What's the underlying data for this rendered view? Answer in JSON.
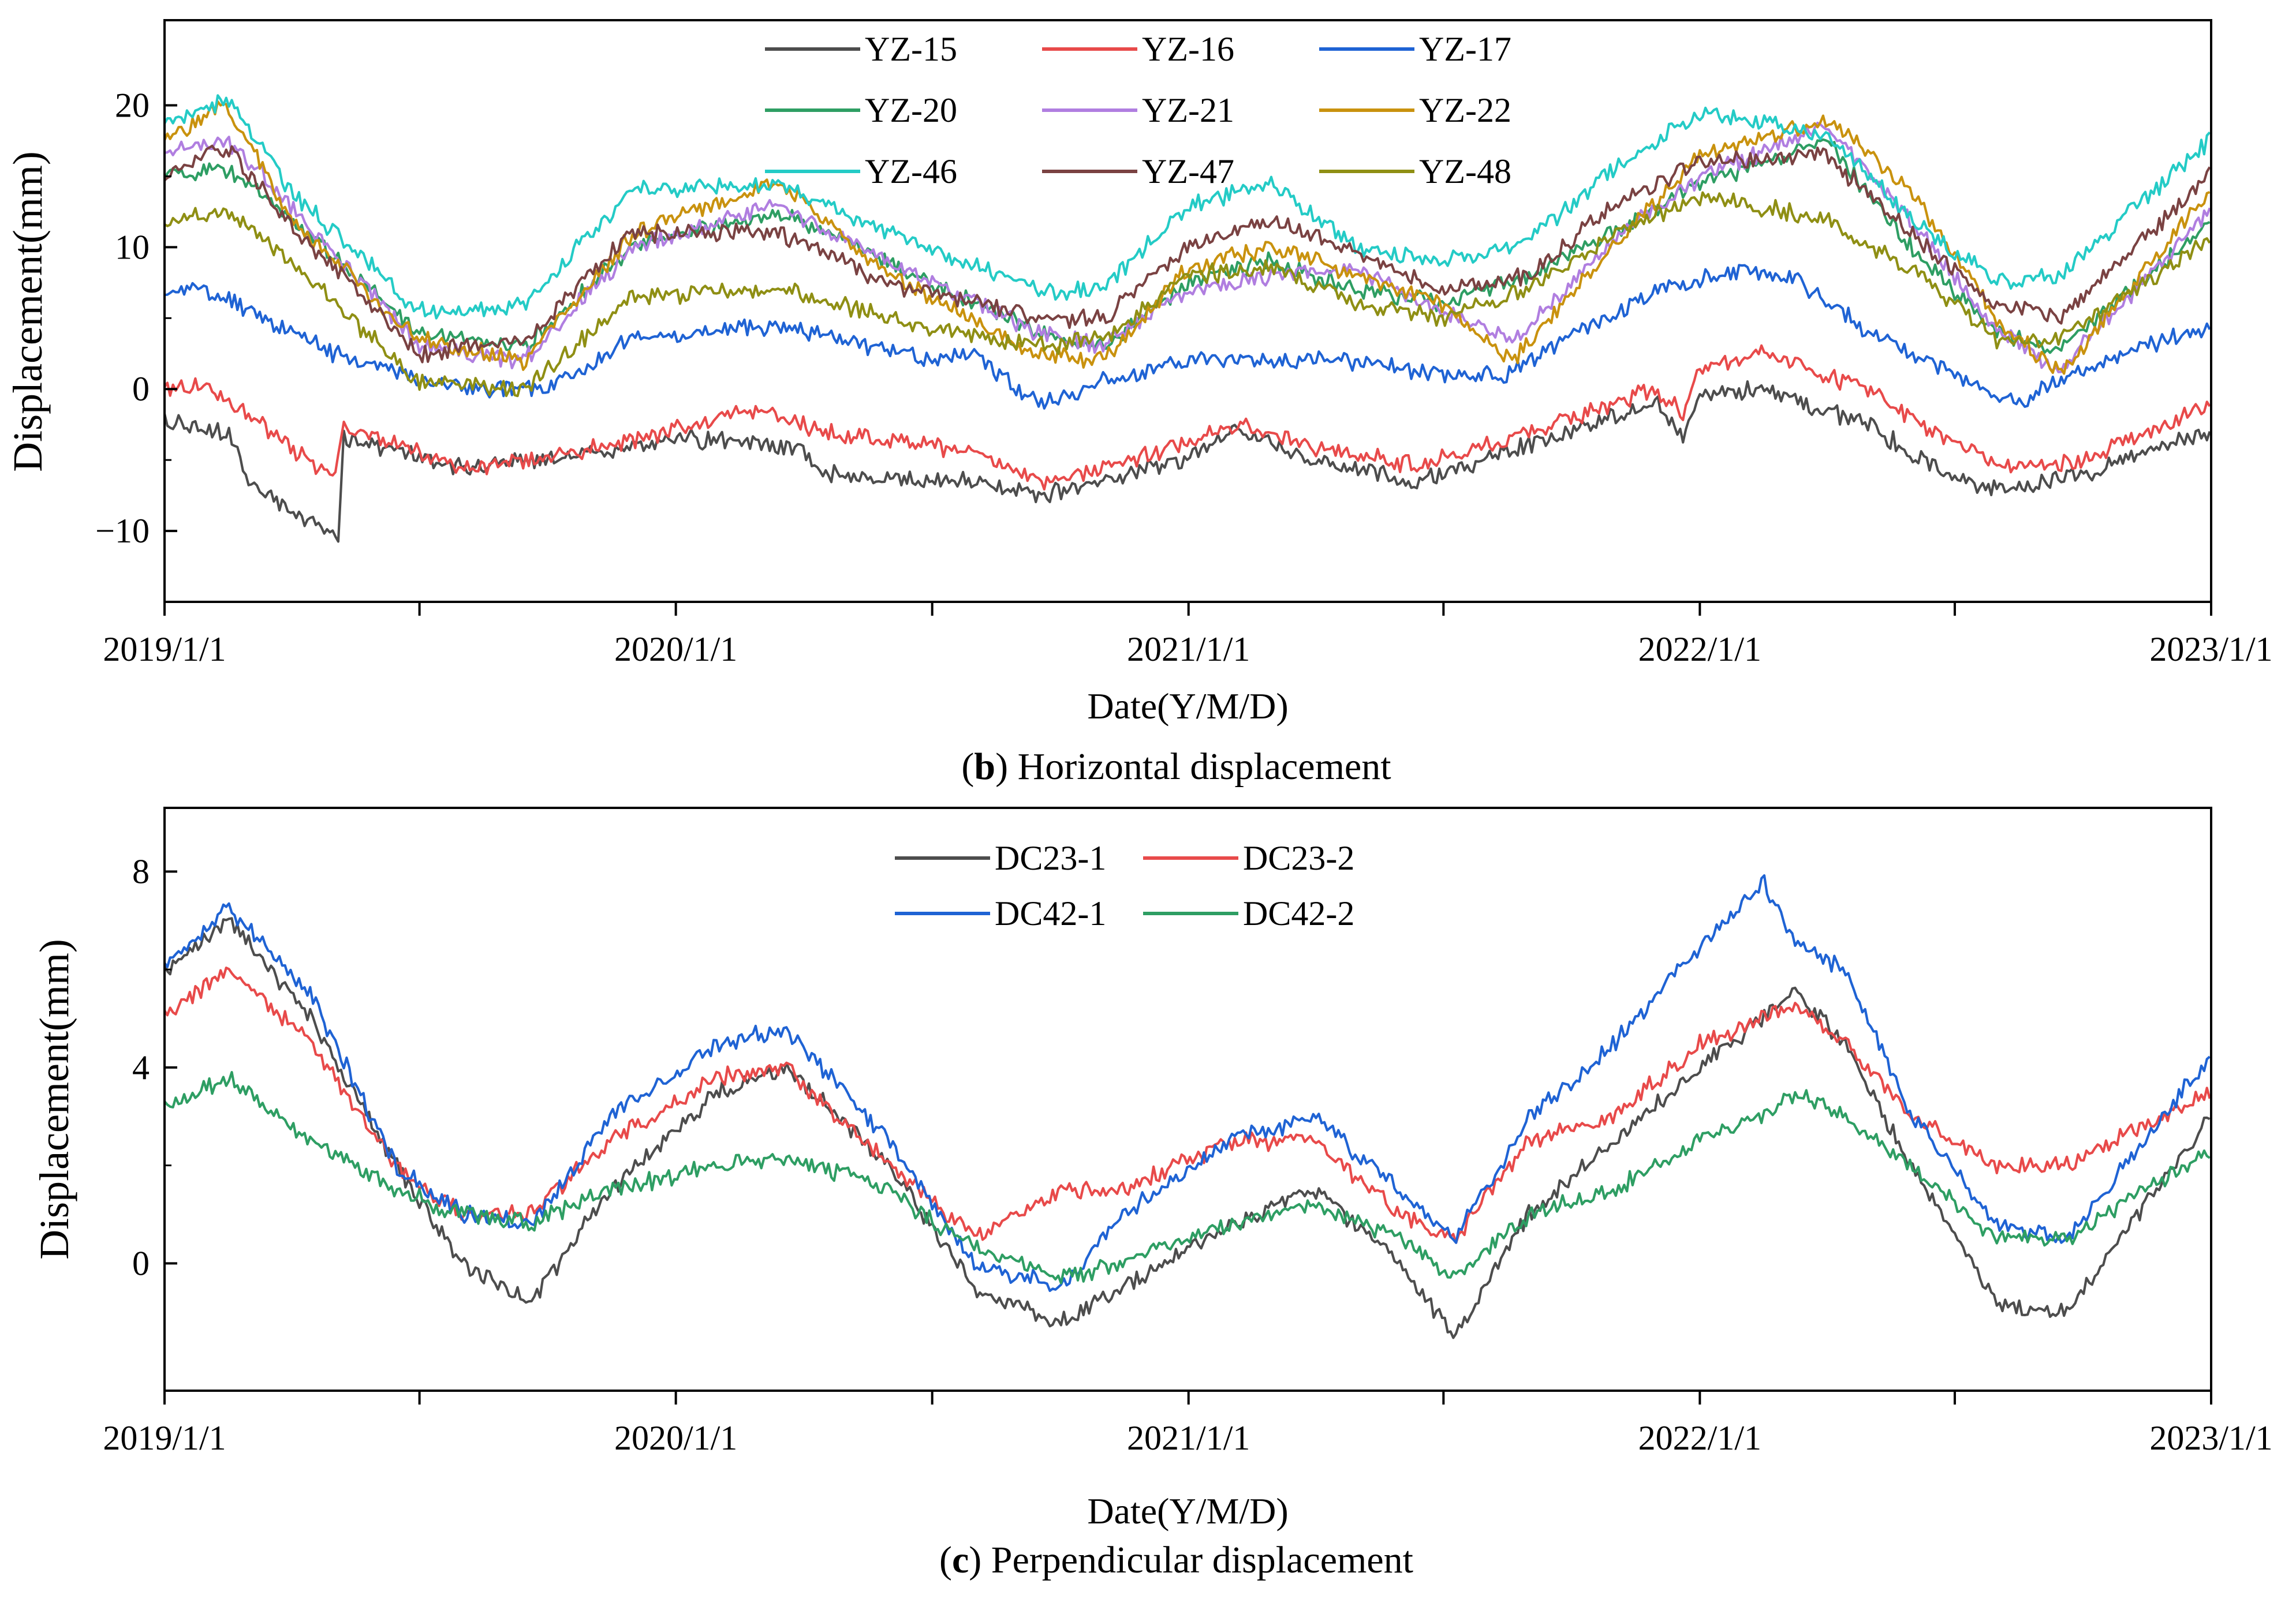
{
  "chart_data": [
    {
      "type": "line",
      "panel_label": "b",
      "caption": "Horizontal displacement",
      "xlabel": "Date(Y/M/D)",
      "ylabel": "Displacement(mm)",
      "x_tick_labels": [
        "2019/1/1",
        "2020/1/1",
        "2021/1/1",
        "2022/1/1",
        "2023/1/1"
      ],
      "x_range": [
        "2019-01-01",
        "2023-01-01"
      ],
      "ylim": [
        -15,
        26
      ],
      "y_ticks": [
        -10,
        0,
        10,
        20
      ],
      "y_tick_labels": [
        "−10",
        "0",
        "10",
        "20"
      ],
      "legend_position": "top-center",
      "legend_columns": 3,
      "series": [
        {
          "name": "YZ-15",
          "color": "#4d4d4d",
          "x": [
            "2019-01-01",
            "2019-02-15",
            "2019-03-01",
            "2019-05-05",
            "2019-05-09",
            "2019-08-01",
            "2019-10-01",
            "2020-01-01",
            "2020-03-01",
            "2020-04-01",
            "2020-04-15",
            "2020-07-01",
            "2020-08-01",
            "2020-09-15",
            "2020-11-01",
            "2021-01-01",
            "2021-02-01",
            "2021-04-01",
            "2021-06-15",
            "2021-09-01",
            "2021-12-01",
            "2021-12-20",
            "2022-01-01",
            "2022-02-15",
            "2022-05-01",
            "2022-07-01",
            "2022-08-15",
            "2022-10-01",
            "2022-12-31"
          ],
          "y": [
            -2.3,
            -3.0,
            -6.5,
            -10.5,
            -3.5,
            -5.5,
            -5.0,
            -3.5,
            -3.8,
            -4.5,
            -6.0,
            -6.5,
            -6.5,
            -7.5,
            -6.5,
            -5.0,
            -3.0,
            -5.0,
            -6.5,
            -4.0,
            -1.0,
            -3.5,
            -0.5,
            0.0,
            -2.5,
            -6.5,
            -7.0,
            -6.0,
            -3.0
          ]
        },
        {
          "name": "YZ-16",
          "color": "#e84a4a",
          "x": [
            "2019-01-01",
            "2019-02-01",
            "2019-05-01",
            "2019-05-09",
            "2019-08-01",
            "2019-10-01",
            "2020-01-01",
            "2020-03-01",
            "2020-04-15",
            "2020-08-01",
            "2020-09-15",
            "2020-11-01",
            "2021-01-01",
            "2021-02-01",
            "2021-04-01",
            "2021-06-15",
            "2021-09-01",
            "2021-12-01",
            "2021-12-20",
            "2022-01-01",
            "2022-02-15",
            "2022-05-01",
            "2022-07-01",
            "2022-08-15",
            "2022-10-01",
            "2022-12-31"
          ],
          "y": [
            0.0,
            0.3,
            -6.3,
            -2.5,
            -5.5,
            -5.0,
            -2.8,
            -1.5,
            -3.0,
            -4.5,
            -6.5,
            -5.5,
            -3.8,
            -2.5,
            -4.0,
            -5.5,
            -3.0,
            0.0,
            -1.5,
            1.5,
            2.5,
            0.0,
            -4.0,
            -5.5,
            -5.0,
            -1.0
          ]
        },
        {
          "name": "YZ-17",
          "color": "#1f63d4",
          "x": [
            "2019-01-01",
            "2019-02-01",
            "2019-05-01",
            "2019-08-01",
            "2019-10-01",
            "2019-12-01",
            "2020-03-01",
            "2020-05-01",
            "2020-07-01",
            "2020-08-01",
            "2020-09-15",
            "2020-11-01",
            "2021-01-01",
            "2021-03-01",
            "2021-05-01",
            "2021-07-01",
            "2021-08-15",
            "2021-10-15",
            "2021-12-01",
            "2022-02-01",
            "2022-03-15",
            "2022-05-01",
            "2022-07-01",
            "2022-08-15",
            "2022-10-01",
            "2022-12-31"
          ],
          "y": [
            6.8,
            7.0,
            2.5,
            0.0,
            0.0,
            3.5,
            4.5,
            3.5,
            2.0,
            2.5,
            -1.0,
            0.5,
            2.0,
            2.0,
            2.0,
            1.0,
            1.0,
            4.5,
            7.0,
            8.5,
            7.5,
            4.0,
            1.0,
            -1.0,
            1.5,
            4.5
          ]
        },
        {
          "name": "YZ-20",
          "color": "#2e9e63",
          "x": [
            "2019-01-01",
            "2019-02-15",
            "2019-04-01",
            "2019-07-01",
            "2019-09-15",
            "2019-12-01",
            "2020-03-15",
            "2020-06-01",
            "2020-09-15",
            "2020-11-01",
            "2021-01-01",
            "2021-03-01",
            "2021-05-01",
            "2021-07-01",
            "2021-09-01",
            "2021-11-01",
            "2022-01-01",
            "2022-04-01",
            "2022-06-01",
            "2022-08-01",
            "2022-09-15",
            "2022-12-31"
          ],
          "y": [
            15.0,
            15.5,
            12.0,
            4.0,
            3.0,
            10.0,
            12.5,
            9.0,
            4.0,
            3.0,
            7.5,
            9.0,
            7.0,
            6.0,
            8.0,
            11.0,
            14.5,
            17.5,
            10.0,
            4.0,
            3.0,
            11.5
          ]
        },
        {
          "name": "YZ-21",
          "color": "#b07ee0",
          "x": [
            "2019-01-01",
            "2019-02-15",
            "2019-04-01",
            "2019-07-01",
            "2019-09-15",
            "2019-12-01",
            "2020-03-15",
            "2020-06-01",
            "2020-09-15",
            "2020-11-01",
            "2021-01-01",
            "2021-03-01",
            "2021-05-01",
            "2021-07-01",
            "2021-08-20",
            "2021-11-01",
            "2022-01-01",
            "2022-04-01",
            "2022-06-01",
            "2022-08-01",
            "2022-09-15",
            "2022-12-31"
          ],
          "y": [
            16.5,
            17.5,
            13.0,
            3.0,
            2.0,
            10.0,
            13.0,
            9.0,
            4.0,
            3.0,
            7.0,
            8.0,
            8.5,
            5.5,
            3.5,
            10.5,
            15.0,
            18.5,
            12.0,
            4.0,
            1.5,
            12.5
          ]
        },
        {
          "name": "YZ-22",
          "color": "#c9920e",
          "x": [
            "2019-01-01",
            "2019-02-15",
            "2019-04-01",
            "2019-07-01",
            "2019-09-15",
            "2019-12-01",
            "2020-03-15",
            "2020-06-01",
            "2020-09-15",
            "2020-11-01",
            "2021-01-01",
            "2021-03-01",
            "2021-05-01",
            "2021-07-01",
            "2021-08-20",
            "2021-11-01",
            "2022-01-01",
            "2022-04-01",
            "2022-06-01",
            "2022-08-01",
            "2022-09-15",
            "2022-12-31"
          ],
          "y": [
            17.5,
            20.0,
            12.0,
            3.5,
            2.0,
            11.0,
            14.5,
            8.0,
            2.5,
            2.0,
            8.5,
            10.0,
            8.0,
            6.0,
            2.0,
            10.0,
            16.5,
            19.0,
            14.0,
            5.0,
            1.0,
            14.0
          ]
        },
        {
          "name": "YZ-46",
          "color": "#24cbc6",
          "x": [
            "2019-01-01",
            "2019-02-15",
            "2019-04-01",
            "2019-07-01",
            "2019-09-15",
            "2019-12-01",
            "2020-03-15",
            "2020-06-01",
            "2020-09-15",
            "2020-11-01",
            "2021-01-01",
            "2021-03-01",
            "2021-05-01",
            "2021-07-01",
            "2021-09-01",
            "2021-11-01",
            "2022-01-01",
            "2022-04-01",
            "2022-06-01",
            "2022-08-01",
            "2022-09-15",
            "2022-12-31"
          ],
          "y": [
            18.5,
            20.5,
            14.0,
            5.5,
            6.0,
            14.0,
            14.5,
            11.0,
            7.0,
            7.0,
            13.0,
            14.5,
            10.0,
            9.0,
            10.5,
            15.5,
            19.5,
            18.0,
            12.0,
            7.5,
            8.0,
            17.5
          ]
        },
        {
          "name": "YZ-47",
          "color": "#7a4242",
          "x": [
            "2019-01-01",
            "2019-02-15",
            "2019-04-01",
            "2019-07-01",
            "2019-09-15",
            "2019-12-01",
            "2020-03-15",
            "2020-06-01",
            "2020-09-15",
            "2020-11-01",
            "2021-01-01",
            "2021-03-01",
            "2021-05-01",
            "2021-07-01",
            "2021-09-01",
            "2021-11-01",
            "2022-01-01",
            "2022-04-01",
            "2022-06-01",
            "2022-08-01",
            "2022-09-15",
            "2022-12-31"
          ],
          "y": [
            15.0,
            17.0,
            11.5,
            2.5,
            3.5,
            11.0,
            11.0,
            7.5,
            5.0,
            5.0,
            10.0,
            12.0,
            9.5,
            7.0,
            8.0,
            13.0,
            16.0,
            16.5,
            11.0,
            6.0,
            5.0,
            15.0
          ]
        },
        {
          "name": "YZ-48",
          "color": "#8f8f14",
          "x": [
            "2019-01-01",
            "2019-02-15",
            "2019-04-01",
            "2019-07-01",
            "2019-09-15",
            "2019-12-01",
            "2020-03-15",
            "2020-06-01",
            "2020-09-15",
            "2020-11-01",
            "2021-01-01",
            "2021-03-01",
            "2021-05-01",
            "2021-07-01",
            "2021-09-01",
            "2021-11-01",
            "2022-01-01",
            "2022-04-01",
            "2022-06-01",
            "2022-08-01",
            "2022-09-15",
            "2022-12-31"
          ],
          "y": [
            11.8,
            12.5,
            9.0,
            0.5,
            0.0,
            6.5,
            7.0,
            5.0,
            3.0,
            3.5,
            8.0,
            8.5,
            6.0,
            5.0,
            7.0,
            11.0,
            13.5,
            12.0,
            8.5,
            3.5,
            3.5,
            10.5
          ]
        }
      ]
    },
    {
      "type": "line",
      "panel_label": "c",
      "caption": "Perpendicular displacement",
      "xlabel": "Date(Y/M/D)",
      "ylabel": "Displacement(mm)",
      "x_tick_labels": [
        "2019/1/1",
        "2020/1/1",
        "2021/1/1",
        "2022/1/1",
        "2023/1/1"
      ],
      "x_range": [
        "2019-01-01",
        "2023-01-01"
      ],
      "ylim": [
        -2.6,
        9.3
      ],
      "y_ticks": [
        0,
        4,
        8
      ],
      "y_tick_labels": [
        "0",
        "4",
        "8"
      ],
      "legend_position": "top-center",
      "legend_columns": 2,
      "series": [
        {
          "name": "DC23-1",
          "color": "#4d4d4d",
          "x": [
            "2019-01-01",
            "2019-02-15",
            "2019-04-15",
            "2019-06-15",
            "2019-08-01",
            "2019-09-20",
            "2019-11-15",
            "2020-02-01",
            "2020-03-20",
            "2020-06-01",
            "2020-08-01",
            "2020-10-01",
            "2020-11-15",
            "2021-02-01",
            "2021-04-01",
            "2021-06-01",
            "2021-07-10",
            "2021-09-01",
            "2021-11-01",
            "2022-01-01",
            "2022-02-15",
            "2022-03-10",
            "2022-04-15",
            "2022-06-01",
            "2022-08-01",
            "2022-09-20",
            "2022-12-31"
          ],
          "y": [
            6.0,
            7.0,
            5.0,
            2.0,
            0.0,
            -0.8,
            1.5,
            3.5,
            4.0,
            2.0,
            -0.5,
            -1.2,
            -0.5,
            0.8,
            1.5,
            0.0,
            -1.5,
            1.0,
            2.5,
            4.0,
            5.0,
            5.5,
            4.5,
            2.0,
            -0.8,
            -1.0,
            3.0
          ]
        },
        {
          "name": "DC23-2",
          "color": "#e84a4a",
          "x": [
            "2019-01-01",
            "2019-02-15",
            "2019-04-15",
            "2019-06-15",
            "2019-08-01",
            "2019-09-20",
            "2019-11-15",
            "2020-02-01",
            "2020-03-20",
            "2020-06-01",
            "2020-08-01",
            "2020-10-01",
            "2020-11-15",
            "2021-02-01",
            "2021-04-01",
            "2021-06-01",
            "2021-07-10",
            "2021-09-01",
            "2021-11-01",
            "2022-01-01",
            "2022-02-15",
            "2022-03-10",
            "2022-04-15",
            "2022-06-01",
            "2022-08-01",
            "2022-09-20",
            "2022-12-31"
          ],
          "y": [
            5.0,
            6.0,
            4.5,
            2.0,
            1.0,
            1.0,
            2.5,
            3.8,
            4.0,
            2.0,
            0.5,
            1.5,
            1.5,
            2.5,
            2.5,
            1.0,
            0.5,
            2.5,
            3.0,
            4.5,
            5.0,
            5.3,
            4.5,
            3.0,
            2.0,
            2.0,
            3.5
          ]
        },
        {
          "name": "DC42-1",
          "color": "#1f63d4",
          "x": [
            "2019-01-01",
            "2019-02-15",
            "2019-04-15",
            "2019-06-15",
            "2019-08-01",
            "2019-09-20",
            "2019-11-15",
            "2020-02-01",
            "2020-03-20",
            "2020-06-01",
            "2020-08-01",
            "2020-10-01",
            "2020-11-15",
            "2021-02-01",
            "2021-04-01",
            "2021-06-01",
            "2021-07-10",
            "2021-09-01",
            "2021-11-01",
            "2022-01-01",
            "2022-02-15",
            "2022-03-10",
            "2022-04-15",
            "2022-06-01",
            "2022-08-01",
            "2022-09-20",
            "2022-12-31"
          ],
          "y": [
            6.0,
            7.3,
            5.5,
            2.0,
            1.0,
            0.8,
            3.0,
            4.5,
            4.8,
            2.5,
            0.0,
            -0.5,
            1.0,
            2.5,
            3.0,
            1.5,
            0.5,
            3.0,
            4.5,
            6.5,
            7.8,
            6.5,
            6.0,
            3.0,
            0.8,
            0.5,
            4.2
          ]
        },
        {
          "name": "DC42-2",
          "color": "#2e9e63",
          "x": [
            "2019-01-01",
            "2019-02-15",
            "2019-04-15",
            "2019-06-15",
            "2019-08-01",
            "2019-09-20",
            "2019-11-15",
            "2020-02-01",
            "2020-03-20",
            "2020-06-01",
            "2020-08-01",
            "2020-10-01",
            "2020-11-15",
            "2021-02-01",
            "2021-04-01",
            "2021-06-01",
            "2021-07-10",
            "2021-09-01",
            "2021-11-01",
            "2022-01-01",
            "2022-02-15",
            "2022-03-10",
            "2022-04-15",
            "2022-06-01",
            "2022-08-01",
            "2022-09-20",
            "2022-12-31"
          ],
          "y": [
            3.2,
            3.8,
            2.5,
            1.5,
            1.0,
            0.8,
            1.5,
            2.0,
            2.2,
            1.5,
            0.3,
            -0.3,
            0.0,
            0.8,
            1.2,
            0.5,
            -0.3,
            1.0,
            1.5,
            2.5,
            3.0,
            3.5,
            3.0,
            2.0,
            0.5,
            0.5,
            2.3
          ]
        }
      ]
    }
  ]
}
